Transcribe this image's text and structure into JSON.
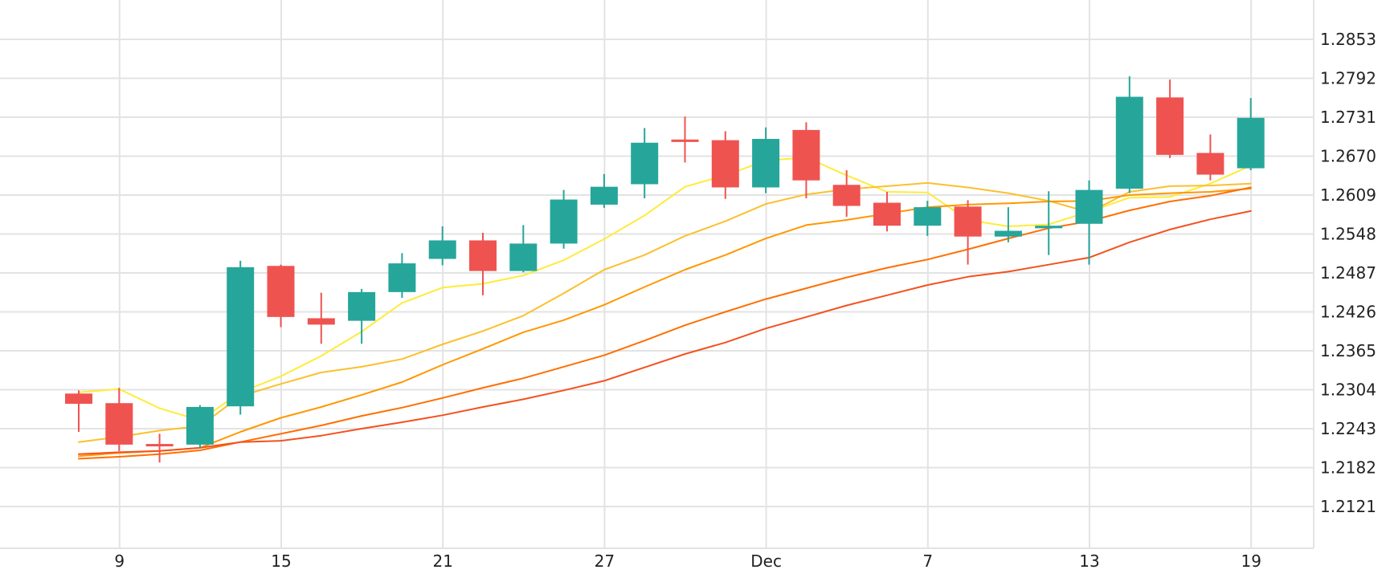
{
  "chart_data": {
    "type": "candlestick",
    "colors": {
      "up": "#26a69a",
      "down": "#ef5350",
      "grid": "#e3e3e3",
      "text": "#222222"
    },
    "y_axis": {
      "position": "right",
      "ticks": [
        "1.2853",
        "1.2792",
        "1.2731",
        "1.2670",
        "1.2609",
        "1.2548",
        "1.2487",
        "1.2426",
        "1.2365",
        "1.2304",
        "1.2243",
        "1.2182",
        "1.2121"
      ]
    },
    "x_axis": {
      "ticks": [
        {
          "label": "9",
          "index": 1
        },
        {
          "label": "15",
          "index": 5
        },
        {
          "label": "21",
          "index": 9
        },
        {
          "label": "27",
          "index": 13
        },
        {
          "label": "Dec",
          "index": 17
        },
        {
          "label": "7",
          "index": 21
        },
        {
          "label": "13",
          "index": 25
        },
        {
          "label": "19",
          "index": 29
        }
      ]
    },
    "candles": [
      {
        "o": 1.2298,
        "h": 1.2303,
        "l": 1.2238,
        "c": 1.2282
      },
      {
        "o": 1.2283,
        "h": 1.2307,
        "l": 1.2208,
        "c": 1.2218
      },
      {
        "o": 1.2219,
        "h": 1.2235,
        "l": 1.219,
        "c": 1.2218
      },
      {
        "o": 1.2218,
        "h": 1.228,
        "l": 1.2212,
        "c": 1.2277
      },
      {
        "o": 1.2278,
        "h": 1.2506,
        "l": 1.2265,
        "c": 1.2496
      },
      {
        "o": 1.2498,
        "h": 1.25,
        "l": 1.2402,
        "c": 1.2418
      },
      {
        "o": 1.2416,
        "h": 1.2456,
        "l": 1.2376,
        "c": 1.2406
      },
      {
        "o": 1.2412,
        "h": 1.2462,
        "l": 1.2376,
        "c": 1.2457
      },
      {
        "o": 1.2457,
        "h": 1.2518,
        "l": 1.2448,
        "c": 1.2502
      },
      {
        "o": 1.2509,
        "h": 1.256,
        "l": 1.2499,
        "c": 1.2538
      },
      {
        "o": 1.2538,
        "h": 1.255,
        "l": 1.2452,
        "c": 1.249
      },
      {
        "o": 1.249,
        "h": 1.2562,
        "l": 1.2488,
        "c": 1.2533
      },
      {
        "o": 1.2533,
        "h": 1.2617,
        "l": 1.2525,
        "c": 1.2602
      },
      {
        "o": 1.2594,
        "h": 1.2642,
        "l": 1.2589,
        "c": 1.2622
      },
      {
        "o": 1.2626,
        "h": 1.2714,
        "l": 1.2604,
        "c": 1.2691
      },
      {
        "o": 1.2696,
        "h": 1.2732,
        "l": 1.266,
        "c": 1.2694
      },
      {
        "o": 1.2695,
        "h": 1.2709,
        "l": 1.2603,
        "c": 1.2621
      },
      {
        "o": 1.2621,
        "h": 1.2715,
        "l": 1.2612,
        "c": 1.2697
      },
      {
        "o": 1.2711,
        "h": 1.2723,
        "l": 1.2604,
        "c": 1.2632
      },
      {
        "o": 1.2625,
        "h": 1.2648,
        "l": 1.2575,
        "c": 1.2592
      },
      {
        "o": 1.2597,
        "h": 1.2614,
        "l": 1.2552,
        "c": 1.2561
      },
      {
        "o": 1.2561,
        "h": 1.26,
        "l": 1.2545,
        "c": 1.259
      },
      {
        "o": 1.2591,
        "h": 1.2601,
        "l": 1.25,
        "c": 1.2544
      },
      {
        "o": 1.2544,
        "h": 1.259,
        "l": 1.2535,
        "c": 1.2553
      },
      {
        "o": 1.2557,
        "h": 1.2615,
        "l": 1.2515,
        "c": 1.2561
      },
      {
        "o": 1.2564,
        "h": 1.2632,
        "l": 1.25,
        "c": 1.2617
      },
      {
        "o": 1.2619,
        "h": 1.2795,
        "l": 1.2612,
        "c": 1.2763
      },
      {
        "o": 1.2762,
        "h": 1.279,
        "l": 1.2667,
        "c": 1.2672
      },
      {
        "o": 1.2675,
        "h": 1.2704,
        "l": 1.2632,
        "c": 1.2641
      },
      {
        "o": 1.2651,
        "h": 1.2761,
        "l": 1.2648,
        "c": 1.273
      }
    ],
    "moving_averages": [
      {
        "color": "#ffeb3b",
        "values": [
          1.23,
          1.2305,
          1.2275,
          1.2256,
          1.23,
          1.2325,
          1.2357,
          1.2395,
          1.244,
          1.2464,
          1.247,
          1.2483,
          1.2507,
          1.254,
          1.2577,
          1.2622,
          1.264,
          1.2663,
          1.2668,
          1.264,
          1.2614,
          1.2613,
          1.257,
          1.256,
          1.2563,
          1.2583,
          1.2605,
          1.2606,
          1.2627,
          1.2655
        ]
      },
      {
        "color": "#fbc02d",
        "values": [
          1.2222,
          1.223,
          1.224,
          1.2247,
          1.2294,
          1.2313,
          1.2331,
          1.234,
          1.2352,
          1.2375,
          1.2396,
          1.242,
          1.2455,
          1.2492,
          1.2515,
          1.2545,
          1.2568,
          1.2595,
          1.261,
          1.2618,
          1.2623,
          1.2628,
          1.2621,
          1.2612,
          1.26,
          1.2582,
          1.2614,
          1.2623,
          1.2624,
          1.2627
        ]
      },
      {
        "color": "#ff9800",
        "values": [
          1.22,
          1.2205,
          1.2208,
          1.2213,
          1.2238,
          1.226,
          1.2277,
          1.2296,
          1.2316,
          1.2343,
          1.2368,
          1.2394,
          1.2413,
          1.2437,
          1.2465,
          1.2492,
          1.2515,
          1.2541,
          1.2562,
          1.257,
          1.258,
          1.259,
          1.2594,
          1.2596,
          1.2599,
          1.26,
          1.2609,
          1.2612,
          1.2614,
          1.2619
        ]
      },
      {
        "color": "#ff6f00",
        "values": [
          1.2196,
          1.2199,
          1.2203,
          1.2209,
          1.2222,
          1.2235,
          1.2248,
          1.2263,
          1.2276,
          1.2291,
          1.2307,
          1.2322,
          1.234,
          1.2358,
          1.2381,
          1.2405,
          1.2426,
          1.2446,
          1.2463,
          1.248,
          1.2495,
          1.2508,
          1.2524,
          1.2541,
          1.2557,
          1.2568,
          1.2585,
          1.2599,
          1.2608,
          1.2621
        ]
      },
      {
        "color": "#f4511e",
        "values": [
          1.2203,
          1.2206,
          1.2208,
          1.2213,
          1.2222,
          1.2224,
          1.2232,
          1.2243,
          1.2253,
          1.2264,
          1.2277,
          1.2289,
          1.2303,
          1.2318,
          1.2339,
          1.236,
          1.2378,
          1.24,
          1.2418,
          1.2436,
          1.2452,
          1.2468,
          1.2481,
          1.2489,
          1.25,
          1.2511,
          1.2535,
          1.2555,
          1.2571,
          1.2584
        ]
      }
    ]
  }
}
